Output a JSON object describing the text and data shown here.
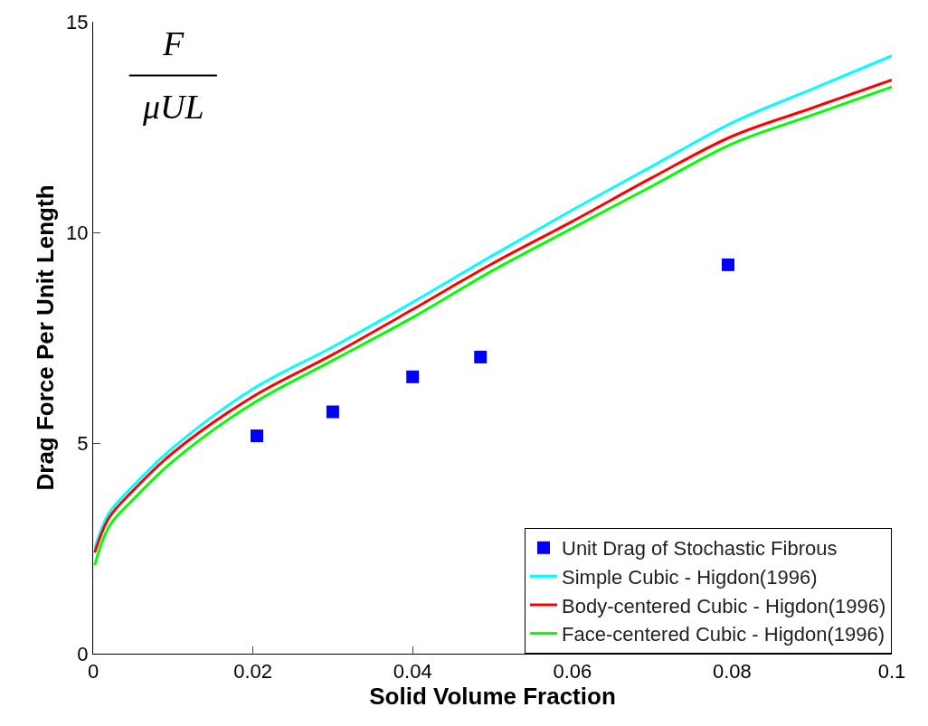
{
  "chart_data": {
    "type": "line",
    "xlabel": "Solid Volume Fraction",
    "ylabel": "Drag Force Per Unit Length",
    "annotations": [
      "F",
      "μUL"
    ],
    "xlim": [
      0,
      0.1
    ],
    "xticks": [
      0,
      0.02,
      0.04,
      0.06,
      0.08,
      0.1
    ],
    "ylim": [
      0,
      15
    ],
    "yticks": [
      0,
      5,
      10,
      15
    ],
    "legend": "bottom right",
    "series": [
      {
        "name": "Unit Drag of Stochastic Fibrous",
        "type": "scatter",
        "marker": "square",
        "color": "#0000ff",
        "x": [
          0.0205,
          0.03,
          0.04,
          0.0485,
          0.0795
        ],
        "values": [
          5.17,
          5.74,
          6.57,
          7.04,
          9.23
        ]
      },
      {
        "name": "Simple Cubic - Higdon(1996)",
        "marker": "none",
        "color": "#00ffff",
        "x": [
          0.0002,
          0.002,
          0.005,
          0.01,
          0.02,
          0.03,
          0.04,
          0.05,
          0.06,
          0.07,
          0.08,
          0.09,
          0.1
        ],
        "values": [
          2.5,
          3.34,
          3.98,
          4.89,
          6.28,
          7.28,
          8.34,
          9.45,
          10.53,
          11.57,
          12.6,
          13.4,
          14.19
        ]
      },
      {
        "name": "Body-centered Cubic - Higdon(1996)",
        "marker": "none",
        "color": "#ff0000",
        "x": [
          0.0002,
          0.002,
          0.005,
          0.01,
          0.02,
          0.03,
          0.04,
          0.05,
          0.06,
          0.07,
          0.08,
          0.09,
          0.1
        ],
        "values": [
          2.4,
          3.23,
          3.87,
          4.77,
          6.1,
          7.1,
          8.17,
          9.26,
          10.26,
          11.3,
          12.28,
          12.95,
          13.62
        ]
      },
      {
        "name": "Face-centered Cubic - Higdon(1996)",
        "marker": "none",
        "color": "#00ff00",
        "x": [
          0.0002,
          0.002,
          0.005,
          0.01,
          0.02,
          0.03,
          0.04,
          0.05,
          0.06,
          0.07,
          0.08,
          0.09,
          0.1
        ],
        "values": [
          2.1,
          3.02,
          3.66,
          4.57,
          5.94,
          6.96,
          7.98,
          9.09,
          10.1,
          11.1,
          12.1,
          12.78,
          13.45
        ]
      }
    ]
  }
}
